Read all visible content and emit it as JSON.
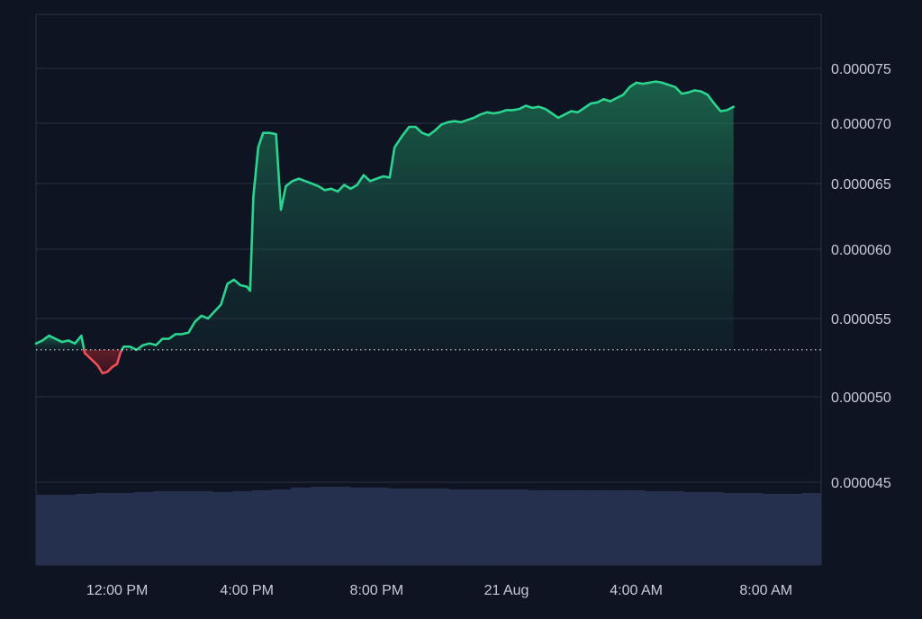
{
  "chart_data": {
    "type": "area",
    "y_ticks": [
      {
        "value": 7.5e-05,
        "label": "0.000075"
      },
      {
        "value": 7e-05,
        "label": "0.000070"
      },
      {
        "value": 6.5e-05,
        "label": "0.000065"
      },
      {
        "value": 6e-05,
        "label": "0.000060"
      },
      {
        "value": 5.5e-05,
        "label": "0.000055"
      },
      {
        "value": 5e-05,
        "label": "0.000050"
      },
      {
        "value": 4.5e-05,
        "label": "0.000045"
      }
    ],
    "x_ticks": [
      "12:00 PM",
      "4:00 PM",
      "8:00 PM",
      "21 Aug",
      "4:00 AM",
      "8:00 AM"
    ],
    "x_tick_hours": [
      12,
      16,
      20,
      24,
      28,
      32
    ],
    "x_range_hours": [
      9.5,
      33.7
    ],
    "baseline": 5.3e-05,
    "baseline_style": "dotted",
    "colors": {
      "background": "#0e1422",
      "grid": "#2a3344",
      "axis_text": "#c7ccd6",
      "up_line": "#2bd48f",
      "down_line": "#ef4f5a",
      "volume": "#25304f"
    },
    "price_series": {
      "name": "",
      "points": [
        [
          9.5,
          5.34e-05
        ],
        [
          9.7,
          5.36e-05
        ],
        [
          9.9,
          5.39e-05
        ],
        [
          10.1,
          5.37e-05
        ],
        [
          10.3,
          5.35e-05
        ],
        [
          10.5,
          5.36e-05
        ],
        [
          10.7,
          5.34e-05
        ],
        [
          10.9,
          5.39e-05
        ],
        [
          11.0,
          5.28e-05
        ],
        [
          11.2,
          5.24e-05
        ],
        [
          11.4,
          5.2e-05
        ],
        [
          11.55,
          5.15e-05
        ],
        [
          11.7,
          5.16e-05
        ],
        [
          11.85,
          5.19e-05
        ],
        [
          12.0,
          5.21e-05
        ],
        [
          12.1,
          5.28e-05
        ],
        [
          12.2,
          5.32e-05
        ],
        [
          12.4,
          5.32e-05
        ],
        [
          12.6,
          5.3e-05
        ],
        [
          12.8,
          5.33e-05
        ],
        [
          13.0,
          5.34e-05
        ],
        [
          13.2,
          5.33e-05
        ],
        [
          13.4,
          5.37e-05
        ],
        [
          13.6,
          5.37e-05
        ],
        [
          13.8,
          5.4e-05
        ],
        [
          14.0,
          5.4e-05
        ],
        [
          14.2,
          5.41e-05
        ],
        [
          14.4,
          5.48e-05
        ],
        [
          14.6,
          5.52e-05
        ],
        [
          14.8,
          5.5e-05
        ],
        [
          15.0,
          5.55e-05
        ],
        [
          15.2,
          5.6e-05
        ],
        [
          15.4,
          5.75e-05
        ],
        [
          15.6,
          5.78e-05
        ],
        [
          15.8,
          5.74e-05
        ],
        [
          16.0,
          5.73e-05
        ],
        [
          16.1,
          5.7e-05
        ],
        [
          16.2,
          6.4e-05
        ],
        [
          16.35,
          6.8e-05
        ],
        [
          16.5,
          6.92e-05
        ],
        [
          16.7,
          6.92e-05
        ],
        [
          16.9,
          6.91e-05
        ],
        [
          17.05,
          6.3e-05
        ],
        [
          17.2,
          6.48e-05
        ],
        [
          17.4,
          6.52e-05
        ],
        [
          17.6,
          6.54e-05
        ],
        [
          17.8,
          6.52e-05
        ],
        [
          18.0,
          6.5e-05
        ],
        [
          18.2,
          6.48e-05
        ],
        [
          18.4,
          6.45e-05
        ],
        [
          18.6,
          6.46e-05
        ],
        [
          18.8,
          6.44e-05
        ],
        [
          19.0,
          6.49e-05
        ],
        [
          19.2,
          6.46e-05
        ],
        [
          19.4,
          6.49e-05
        ],
        [
          19.6,
          6.57e-05
        ],
        [
          19.8,
          6.52e-05
        ],
        [
          20.0,
          6.54e-05
        ],
        [
          20.2,
          6.56e-05
        ],
        [
          20.4,
          6.55e-05
        ],
        [
          20.55,
          6.8e-05
        ],
        [
          20.8,
          6.9e-05
        ],
        [
          21.0,
          6.97e-05
        ],
        [
          21.2,
          6.97e-05
        ],
        [
          21.4,
          6.92e-05
        ],
        [
          21.6,
          6.9e-05
        ],
        [
          21.8,
          6.94e-05
        ],
        [
          22.0,
          6.99e-05
        ],
        [
          22.2,
          7.01e-05
        ],
        [
          22.4,
          7.02e-05
        ],
        [
          22.6,
          7.01e-05
        ],
        [
          22.8,
          7.03e-05
        ],
        [
          23.0,
          7.05e-05
        ],
        [
          23.2,
          7.08e-05
        ],
        [
          23.4,
          7.1e-05
        ],
        [
          23.6,
          7.09e-05
        ],
        [
          23.8,
          7.1e-05
        ],
        [
          24.0,
          7.12e-05
        ],
        [
          24.2,
          7.12e-05
        ],
        [
          24.4,
          7.13e-05
        ],
        [
          24.6,
          7.16e-05
        ],
        [
          24.8,
          7.14e-05
        ],
        [
          25.0,
          7.15e-05
        ],
        [
          25.2,
          7.13e-05
        ],
        [
          25.4,
          7.09e-05
        ],
        [
          25.6,
          7.05e-05
        ],
        [
          25.8,
          7.08e-05
        ],
        [
          26.0,
          7.11e-05
        ],
        [
          26.2,
          7.1e-05
        ],
        [
          26.4,
          7.14e-05
        ],
        [
          26.6,
          7.18e-05
        ],
        [
          26.8,
          7.19e-05
        ],
        [
          27.0,
          7.22e-05
        ],
        [
          27.2,
          7.2e-05
        ],
        [
          27.4,
          7.23e-05
        ],
        [
          27.6,
          7.26e-05
        ],
        [
          27.8,
          7.33e-05
        ],
        [
          28.0,
          7.37e-05
        ],
        [
          28.2,
          7.36e-05
        ],
        [
          28.4,
          7.37e-05
        ],
        [
          28.6,
          7.38e-05
        ],
        [
          28.8,
          7.37e-05
        ],
        [
          29.0,
          7.35e-05
        ],
        [
          29.2,
          7.33e-05
        ],
        [
          29.4,
          7.27e-05
        ],
        [
          29.6,
          7.28e-05
        ],
        [
          29.8,
          7.3e-05
        ],
        [
          30.0,
          7.29e-05
        ],
        [
          30.2,
          7.26e-05
        ],
        [
          30.4,
          7.18e-05
        ],
        [
          30.6,
          7.11e-05
        ],
        [
          30.8,
          7.12e-05
        ],
        [
          31.0,
          7.15e-05
        ]
      ]
    },
    "volume_series": {
      "name": "",
      "values": [
        0.78,
        0.78,
        0.79,
        0.8,
        0.8,
        0.81,
        0.82,
        0.82,
        0.82,
        0.81,
        0.82,
        0.83,
        0.84,
        0.86,
        0.87,
        0.87,
        0.86,
        0.86,
        0.85,
        0.85,
        0.85,
        0.84,
        0.84,
        0.84,
        0.84,
        0.83,
        0.83,
        0.83,
        0.83,
        0.83,
        0.83,
        0.82,
        0.82,
        0.81,
        0.81,
        0.8,
        0.8,
        0.79,
        0.79,
        0.8
      ]
    }
  }
}
